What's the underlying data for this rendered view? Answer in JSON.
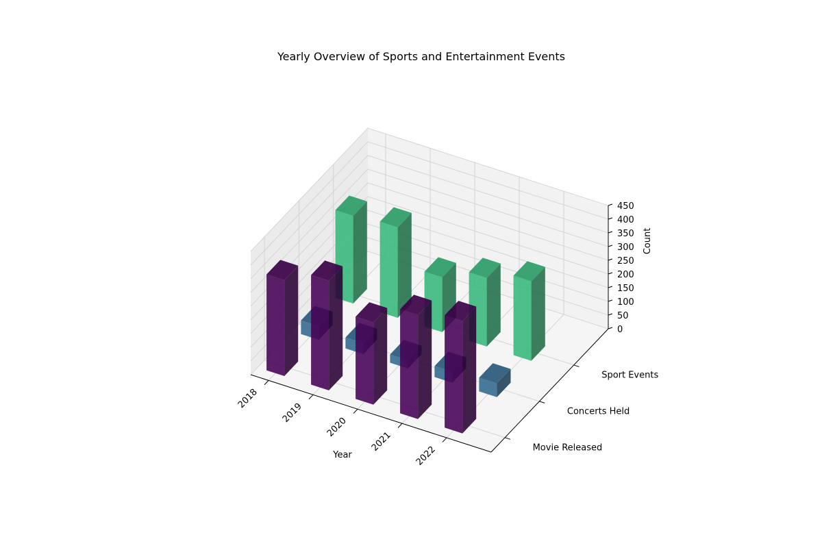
{
  "chart_data": {
    "type": "bar3d",
    "title": "Yearly Overview of Sports and Entertainment Events",
    "xlabel": "Year",
    "ylabel": "",
    "zlabel": "Count",
    "categories": [
      "2018",
      "2019",
      "2020",
      "2021",
      "2022"
    ],
    "series": [
      {
        "name": "Movie Released",
        "values": [
          350,
          400,
          300,
          380,
          410
        ],
        "color": "#440154"
      },
      {
        "name": "Concerts Held",
        "values": [
          50,
          40,
          30,
          40,
          50
        ],
        "color": "#31688e"
      },
      {
        "name": "Sport Events",
        "values": [
          320,
          330,
          200,
          250,
          290
        ],
        "color": "#35b779"
      }
    ],
    "zticks": [
      0,
      50,
      100,
      150,
      200,
      250,
      300,
      350,
      400,
      450
    ],
    "zlim": [
      0,
      450
    ],
    "grid": true
  }
}
